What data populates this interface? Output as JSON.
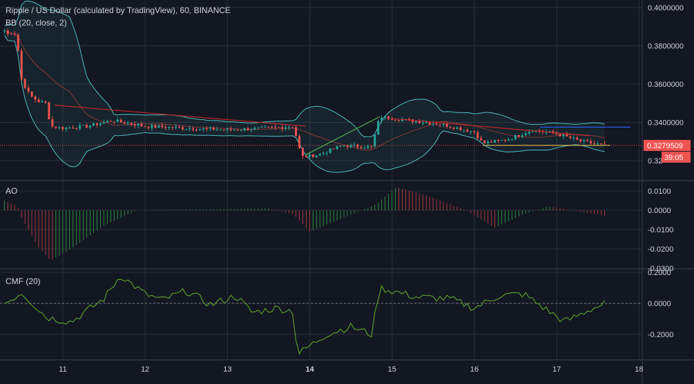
{
  "header": {
    "title": "Ripple / US Dollar (calculated by TradingView), 60, BINANCE",
    "bb_label": "BB (20, close, 2)",
    "ao_label": "AO",
    "cmf_label": "CMF (20)"
  },
  "colors": {
    "background": "#131722",
    "grid": "#2a2e39",
    "text": "#d1d4dc",
    "up": "#26a69a",
    "down": "#ef5350",
    "bb_band": "#4ec3c2",
    "bb_basis": "#8b3a3a",
    "ao_up": "#2e8b3c",
    "ao_down": "#a93a3a",
    "cmf": "#5a9a2a",
    "price_label": "#ef5350",
    "trend_red": "#c62828",
    "trend_green": "#4caf50",
    "trend_yellow": "#e6d84a",
    "trend_blue": "#2962ff"
  },
  "price_axis": {
    "ticks": [
      "0.4000000",
      "0.3800000",
      "0.3600000",
      "0.3400000",
      "0.32"
    ],
    "current_price": "0.3279509",
    "countdown": "39:05"
  },
  "ao_axis": {
    "ticks": [
      "0.0100",
      "0.0000",
      "-0.0100",
      "-0.0200",
      "-0.0300"
    ]
  },
  "cmf_axis": {
    "ticks": [
      "0.2000",
      "0.0000",
      "-0.2000"
    ]
  },
  "time_axis": {
    "labels": [
      "11",
      "12",
      "13",
      "14",
      "15",
      "16",
      "17",
      "18"
    ]
  },
  "chart_data": {
    "type": "candlestick",
    "symbol": "Ripple / US Dollar",
    "interval": "60",
    "exchange": "BINANCE",
    "panes": [
      {
        "name": "price",
        "ylim": [
          0.318,
          0.4
        ],
        "last": 0.3279509
      },
      {
        "name": "AO",
        "ylim": [
          -0.03,
          0.015
        ]
      },
      {
        "name": "CMF (20)",
        "ylim": [
          -0.25,
          0.2
        ]
      }
    ],
    "close_series": [
      {
        "day": 10.3,
        "close": 0.388
      },
      {
        "day": 10.35,
        "close": 0.385
      },
      {
        "day": 10.4,
        "close": 0.389
      },
      {
        "day": 10.45,
        "close": 0.38
      },
      {
        "day": 10.5,
        "close": 0.362
      },
      {
        "day": 10.6,
        "close": 0.354
      },
      {
        "day": 10.7,
        "close": 0.351
      },
      {
        "day": 10.8,
        "close": 0.35
      },
      {
        "day": 10.85,
        "close": 0.338
      },
      {
        "day": 11.0,
        "close": 0.337
      },
      {
        "day": 11.3,
        "close": 0.338
      },
      {
        "day": 11.6,
        "close": 0.341
      },
      {
        "day": 12.0,
        "close": 0.338
      },
      {
        "day": 12.5,
        "close": 0.337
      },
      {
        "day": 13.0,
        "close": 0.336
      },
      {
        "day": 13.5,
        "close": 0.337
      },
      {
        "day": 13.8,
        "close": 0.338
      },
      {
        "day": 13.9,
        "close": 0.322
      },
      {
        "day": 14.1,
        "close": 0.323
      },
      {
        "day": 14.4,
        "close": 0.328
      },
      {
        "day": 14.75,
        "close": 0.327
      },
      {
        "day": 14.85,
        "close": 0.343
      },
      {
        "day": 15.2,
        "close": 0.341
      },
      {
        "day": 15.6,
        "close": 0.339
      },
      {
        "day": 16.0,
        "close": 0.335
      },
      {
        "day": 16.1,
        "close": 0.329
      },
      {
        "day": 16.4,
        "close": 0.331
      },
      {
        "day": 16.7,
        "close": 0.336
      },
      {
        "day": 17.0,
        "close": 0.334
      },
      {
        "day": 17.3,
        "close": 0.33
      },
      {
        "day": 17.6,
        "close": 0.3279509
      }
    ],
    "trendlines": [
      {
        "color": "red",
        "from": {
          "day": 10.9,
          "price": 0.349
        },
        "to": {
          "day": 13.95,
          "price": 0.338
        }
      },
      {
        "color": "green",
        "from": {
          "day": 13.95,
          "price": 0.323
        },
        "to": {
          "day": 14.85,
          "price": 0.343
        }
      },
      {
        "color": "red",
        "from": {
          "day": 15.0,
          "price": 0.342
        },
        "to": {
          "day": 17.4,
          "price": 0.333
        }
      },
      {
        "color": "yellow",
        "from": {
          "day": 16.1,
          "price": 0.328
        },
        "to": {
          "day": 17.65,
          "price": 0.328
        }
      },
      {
        "color": "blue",
        "from": {
          "day": 16.8,
          "price": 0.3375
        },
        "to": {
          "day": 17.9,
          "price": 0.3375
        }
      }
    ],
    "ao_series": [
      {
        "day": 10.3,
        "value": 0.005
      },
      {
        "day": 10.45,
        "value": 0.002
      },
      {
        "day": 10.5,
        "value": -0.004
      },
      {
        "day": 10.7,
        "value": -0.019
      },
      {
        "day": 10.85,
        "value": -0.026
      },
      {
        "day": 11.1,
        "value": -0.02
      },
      {
        "day": 11.5,
        "value": -0.008
      },
      {
        "day": 11.9,
        "value": 0.0
      },
      {
        "day": 13.5,
        "value": 0.001
      },
      {
        "day": 13.8,
        "value": -0.002
      },
      {
        "day": 14.0,
        "value": -0.011
      },
      {
        "day": 14.4,
        "value": -0.004
      },
      {
        "day": 14.8,
        "value": 0.003
      },
      {
        "day": 15.05,
        "value": 0.012
      },
      {
        "day": 15.4,
        "value": 0.008
      },
      {
        "day": 15.9,
        "value": 0.0
      },
      {
        "day": 16.25,
        "value": -0.009
      },
      {
        "day": 16.6,
        "value": -0.002
      },
      {
        "day": 16.9,
        "value": 0.002
      },
      {
        "day": 17.2,
        "value": 0.0
      },
      {
        "day": 17.6,
        "value": -0.003
      }
    ],
    "cmf_series": [
      {
        "day": 10.3,
        "value": 0.0
      },
      {
        "day": 10.5,
        "value": 0.07
      },
      {
        "day": 10.8,
        "value": -0.09
      },
      {
        "day": 11.1,
        "value": -0.12
      },
      {
        "day": 11.5,
        "value": 0.03
      },
      {
        "day": 11.7,
        "value": 0.18
      },
      {
        "day": 12.0,
        "value": 0.06
      },
      {
        "day": 12.2,
        "value": 0.02
      },
      {
        "day": 12.5,
        "value": 0.08
      },
      {
        "day": 12.8,
        "value": -0.01
      },
      {
        "day": 13.1,
        "value": 0.05
      },
      {
        "day": 13.3,
        "value": -0.06
      },
      {
        "day": 13.6,
        "value": -0.03
      },
      {
        "day": 13.8,
        "value": -0.05
      },
      {
        "day": 13.85,
        "value": -0.33
      },
      {
        "day": 14.2,
        "value": -0.2
      },
      {
        "day": 14.5,
        "value": -0.15
      },
      {
        "day": 14.75,
        "value": -0.2
      },
      {
        "day": 14.85,
        "value": 0.1
      },
      {
        "day": 15.3,
        "value": 0.04
      },
      {
        "day": 15.7,
        "value": 0.03
      },
      {
        "day": 16.0,
        "value": -0.03
      },
      {
        "day": 16.3,
        "value": 0.05
      },
      {
        "day": 16.6,
        "value": 0.06
      },
      {
        "day": 16.9,
        "value": -0.05
      },
      {
        "day": 17.1,
        "value": -0.12
      },
      {
        "day": 17.4,
        "value": -0.04
      },
      {
        "day": 17.6,
        "value": 0.0
      }
    ]
  }
}
